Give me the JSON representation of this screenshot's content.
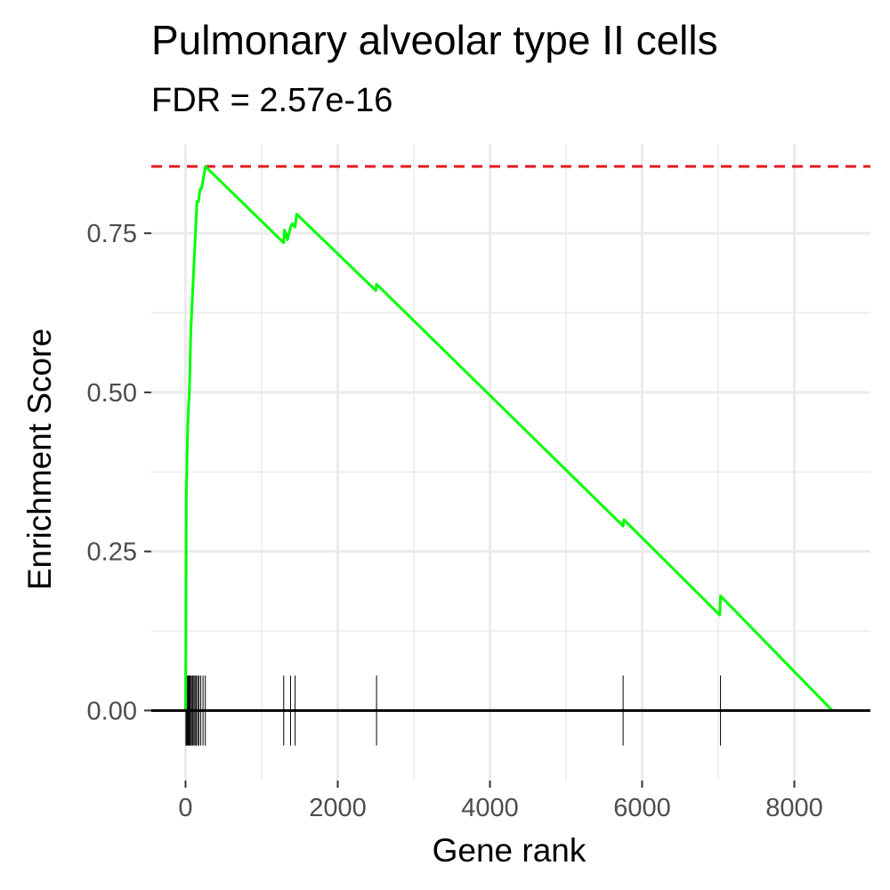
{
  "chart_data": {
    "type": "line",
    "title": "Pulmonary alveolar type II cells",
    "subtitle": "FDR = 2.57e-16",
    "xlabel": "Gene rank",
    "ylabel": "Enrichment Score",
    "xlim": [
      -450,
      9000
    ],
    "ylim": [
      -0.11,
      0.89
    ],
    "x_ticks": [
      0,
      2000,
      4000,
      6000,
      8000
    ],
    "y_ticks": [
      0.0,
      0.25,
      0.5,
      0.75
    ],
    "x_tick_labels": [
      "0",
      "2000",
      "4000",
      "6000",
      "8000"
    ],
    "y_tick_labels": [
      "0.00",
      "0.25",
      "0.50",
      "0.75"
    ],
    "grid": true,
    "max_es_line": {
      "value": 0.855,
      "color": "#e31a1c"
    },
    "series": [
      {
        "color": "#00ff00",
        "x": [
          0,
          5,
          10,
          20,
          30,
          40,
          50,
          60,
          70,
          90,
          110,
          130,
          150,
          170,
          180,
          195,
          210,
          225,
          240,
          260,
          1290,
          1300,
          1320,
          1340,
          1380,
          1400,
          1440,
          1460,
          2500,
          2510,
          5750,
          5760,
          7020,
          7030,
          8500
        ],
        "y": [
          0.0,
          0.12,
          0.33,
          0.4,
          0.45,
          0.48,
          0.5,
          0.55,
          0.6,
          0.65,
          0.7,
          0.75,
          0.8,
          0.8,
          0.81,
          0.82,
          0.82,
          0.83,
          0.84,
          0.855,
          0.735,
          0.755,
          0.75,
          0.74,
          0.76,
          0.765,
          0.76,
          0.78,
          0.66,
          0.67,
          0.29,
          0.3,
          0.15,
          0.18,
          0.0
        ]
      }
    ],
    "rug_positions": [
      5,
      15,
      25,
      35,
      45,
      55,
      65,
      80,
      95,
      110,
      125,
      140,
      160,
      175,
      200,
      230,
      260,
      1290,
      1380,
      1440,
      2510,
      5750,
      7030
    ],
    "rug_range": [
      -0.055,
      0.055
    ],
    "colors": {
      "line": "#00ff00",
      "max_line": "#e31a1c",
      "grid": "#ebebeb",
      "rug": "#000000",
      "zero_line": "#000000"
    }
  }
}
